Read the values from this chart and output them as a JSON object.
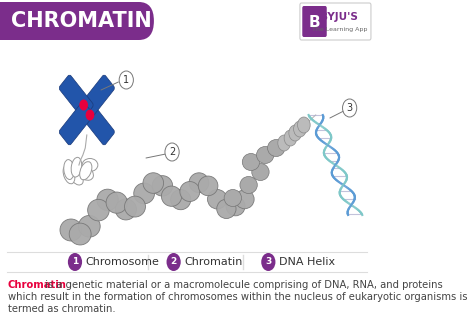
{
  "title": "CHROMATIN",
  "title_bg_color": "#7B2D8B",
  "title_text_color": "#FFFFFF",
  "bg_color": "#FFFFFF",
  "legend_items": [
    {
      "number": "1",
      "label": "Chromosome"
    },
    {
      "number": "2",
      "label": "Chromatin"
    },
    {
      "number": "3",
      "label": "DNA Helix"
    }
  ],
  "description_bold": "Chromatin",
  "description_bold_color": "#E8003D",
  "description_line1": " is a genetic material or a macromolecule comprising of DNA, RNA, and proteins",
  "description_line2": "which result in the formation of chromosomes within the nucleus of eukaryotic organisms is",
  "description_line3": "termed as chromatin.",
  "description_text_color": "#444444",
  "chromosome_blue": "#2255AA",
  "chromosome_dark_blue": "#1A3A7A",
  "chromosome_red": "#E8003D",
  "chromatin_gray": "#AAAAAA",
  "chromatin_dark_gray": "#888888",
  "dna_blue": "#5B9BD5",
  "dna_teal": "#7EC8C8",
  "dna_red": "#E8003D",
  "annotation_color": "#777777",
  "separator_color": "#DDDDDD",
  "byju_purple": "#7B2D8B",
  "legend_circle_color": "#7B2D8B"
}
